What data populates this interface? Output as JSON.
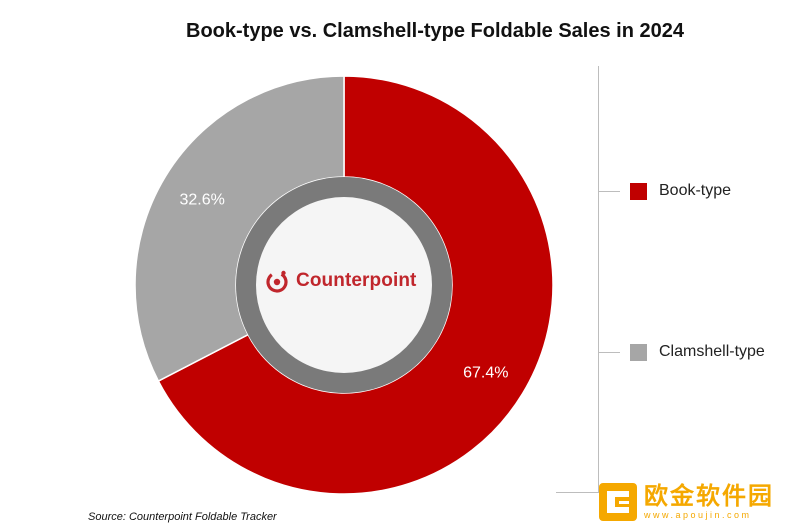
{
  "title": "Book-type vs. Clamshell-type Foldable Sales in 2024",
  "source": "Source: Counterpoint Foldable Tracker",
  "brand": "Counterpoint",
  "watermark": {
    "text": "欧金软件园",
    "url": "www.apoujin.com"
  },
  "colors": {
    "book": "#c00000",
    "clamshell": "#a6a6a6"
  },
  "chart_data": {
    "type": "pie",
    "title": "Book-type vs. Clamshell-type Foldable Sales in 2024",
    "categories": [
      "Book-type",
      "Clamshell-type"
    ],
    "values": [
      67.4,
      32.6
    ],
    "labels": [
      "67.4%",
      "32.6%"
    ],
    "unit": "%",
    "legend_position": "right"
  }
}
